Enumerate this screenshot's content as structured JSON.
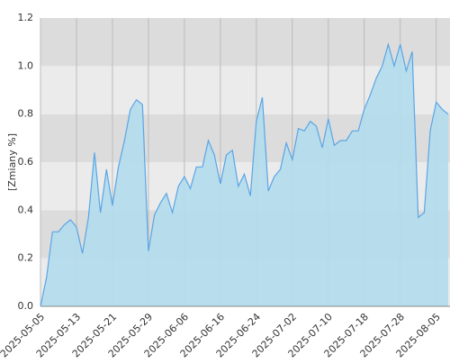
{
  "chart_data": {
    "type": "area",
    "y_label": "[Zmiany %]",
    "categories": [
      "2025-05-05",
      null,
      null,
      null,
      null,
      null,
      "2025-05-13",
      null,
      null,
      null,
      null,
      null,
      "2025-05-21",
      null,
      null,
      null,
      null,
      null,
      "2025-05-29",
      null,
      null,
      null,
      null,
      null,
      "2025-06-06",
      null,
      null,
      null,
      null,
      null,
      "2025-06-16",
      null,
      null,
      null,
      null,
      null,
      "2025-06-24",
      null,
      null,
      null,
      null,
      null,
      "2025-07-02",
      null,
      null,
      null,
      null,
      null,
      "2025-07-10",
      null,
      null,
      null,
      null,
      null,
      "2025-07-18",
      null,
      null,
      null,
      null,
      null,
      "2025-07-28",
      null,
      null,
      null,
      null,
      null,
      "2025-08-05",
      null,
      null
    ],
    "values": [
      0.0,
      0.12,
      0.31,
      0.31,
      0.34,
      0.36,
      0.33,
      0.22,
      0.37,
      0.64,
      0.39,
      0.57,
      0.42,
      0.58,
      0.69,
      0.82,
      0.86,
      0.84,
      0.23,
      0.38,
      0.43,
      0.47,
      0.39,
      0.5,
      0.54,
      0.49,
      0.58,
      0.58,
      0.69,
      0.63,
      0.51,
      0.63,
      0.65,
      0.5,
      0.55,
      0.46,
      0.77,
      0.87,
      0.48,
      0.54,
      0.57,
      0.68,
      0.61,
      0.74,
      0.73,
      0.77,
      0.75,
      0.66,
      0.78,
      0.67,
      0.69,
      0.69,
      0.73,
      0.73,
      0.82,
      0.88,
      0.95,
      1.0,
      1.09,
      1.0,
      1.09,
      0.98,
      1.06,
      0.37,
      0.39,
      0.73,
      0.85,
      0.82,
      0.8
    ],
    "color": "#5aa5e6",
    "fill": "#b3dcec",
    "ylim": [
      0,
      1.2
    ],
    "yticks": [
      {
        "value": 0,
        "label": "0.0"
      },
      0.2,
      0.4,
      0.6,
      0.8,
      {
        "value": 1,
        "label": "1.0"
      },
      {
        "value": 1.2,
        "label": "1.2"
      }
    ],
    "band_colors": [
      "#ebebeb",
      "#dcdcdc"
    ],
    "grid": true
  }
}
